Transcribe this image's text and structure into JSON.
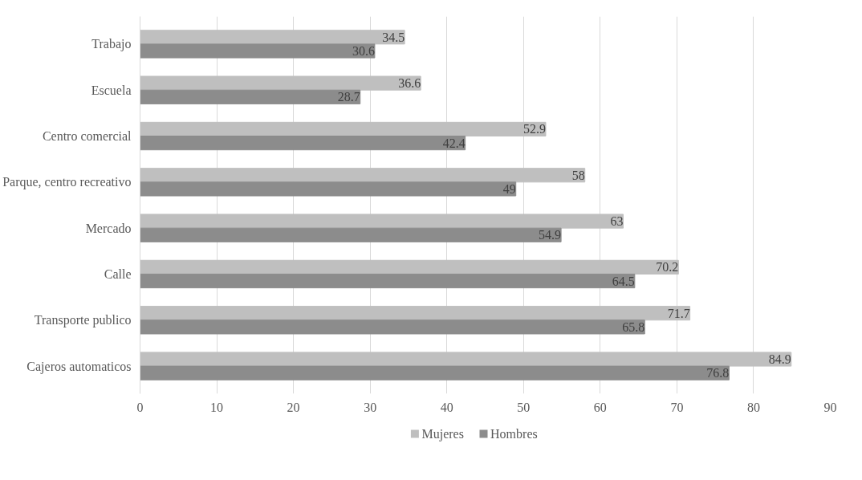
{
  "chart_data": {
    "type": "bar",
    "orientation": "horizontal",
    "categories": [
      "Trabajo",
      "Escuela",
      "Centro comercial",
      "Parque, centro recreativo",
      "Mercado",
      "Calle",
      "Transporte publico",
      "Cajeros automaticos"
    ],
    "series": [
      {
        "name": "Mujeres",
        "color": "#bfbfbf",
        "values": [
          34.5,
          36.6,
          52.9,
          58,
          63,
          70.2,
          71.7,
          84.9
        ]
      },
      {
        "name": "Hombres",
        "color": "#8c8c8c",
        "values": [
          30.6,
          28.7,
          42.4,
          49,
          54.9,
          64.5,
          65.8,
          76.8
        ]
      }
    ],
    "xlim": [
      0,
      90
    ],
    "xticks": [
      0,
      10,
      20,
      30,
      40,
      50,
      60,
      70,
      80,
      90
    ],
    "grid": "x",
    "legend": "bottom",
    "data_labels": true
  }
}
